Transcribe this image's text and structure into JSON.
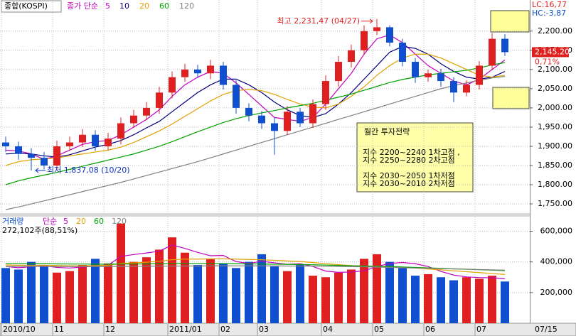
{
  "chart_data": [
    {
      "type": "candlestick",
      "name": "종합(KOSPI)",
      "ma_label": "종가 단순",
      "categories": [
        "2010/10",
        null,
        null,
        null,
        "11",
        null,
        null,
        null,
        "12",
        null,
        null,
        null,
        null,
        "2011/01",
        null,
        null,
        null,
        "02",
        null,
        null,
        "03",
        null,
        null,
        null,
        null,
        "04",
        null,
        null,
        null,
        "05",
        null,
        null,
        null,
        "06",
        null,
        null,
        null,
        "07",
        null,
        null
      ],
      "last_date": "07/15",
      "open": [
        1910,
        1900,
        1880,
        1870,
        1850,
        1900,
        1910,
        1930,
        1900,
        1920,
        1960,
        1980,
        2000,
        2040,
        2080,
        2100,
        2090,
        2110,
        2060,
        2000,
        1980,
        1960,
        1940,
        1990,
        1960,
        2010,
        2070,
        2120,
        2150,
        2200,
        2210,
        2170,
        2120,
        2080,
        2090,
        2070,
        2040,
        2060,
        2110,
        2180
      ],
      "high": [
        1925,
        1912,
        1895,
        1885,
        1915,
        1925,
        1945,
        1942,
        1935,
        1975,
        1995,
        2015,
        2055,
        2095,
        2115,
        2112,
        2125,
        2120,
        2072,
        2012,
        1992,
        1975,
        2005,
        2000,
        2022,
        2085,
        2135,
        2165,
        2215,
        2231.47,
        2215,
        2180,
        2130,
        2100,
        2102,
        2080,
        2072,
        2122,
        2195,
        2192
      ],
      "low": [
        1885,
        1865,
        1837.08,
        1840,
        1838,
        1888,
        1898,
        1888,
        1890,
        1905,
        1948,
        1968,
        1985,
        2025,
        2068,
        2078,
        2075,
        2048,
        1985,
        1965,
        1945,
        1878,
        1930,
        1950,
        1948,
        1995,
        2055,
        2105,
        2138,
        2190,
        2160,
        2108,
        2065,
        2068,
        2055,
        2015,
        2030,
        2048,
        2098,
        2135
      ],
      "close": [
        1900,
        1880,
        1870,
        1850,
        1900,
        1910,
        1930,
        1900,
        1920,
        1960,
        1980,
        2000,
        2040,
        2080,
        2100,
        2090,
        2110,
        2060,
        2000,
        1980,
        1960,
        1940,
        1990,
        1960,
        2010,
        2070,
        2120,
        2150,
        2200,
        2210,
        2170,
        2120,
        2080,
        2090,
        2070,
        2040,
        2060,
        2110,
        2180,
        2145.2
      ],
      "up_color": "#e02020",
      "down_color": "#1050d0",
      "series": [
        {
          "name": "5",
          "color": "#c000c0",
          "values": [
            1890,
            1888,
            1880,
            1866,
            1875,
            1890,
            1905,
            1912,
            1915,
            1930,
            1950,
            1970,
            1995,
            2030,
            2060,
            2080,
            2095,
            2090,
            2065,
            2035,
            2005,
            1975,
            1970,
            1965,
            1975,
            2010,
            2050,
            2090,
            2140,
            2180,
            2190,
            2170,
            2140,
            2110,
            2090,
            2070,
            2060,
            2075,
            2100,
            2125
          ]
        },
        {
          "name": "10",
          "color": "#000080",
          "values": [
            1880,
            1882,
            1880,
            1875,
            1872,
            1878,
            1888,
            1898,
            1905,
            1915,
            1930,
            1948,
            1965,
            1990,
            2015,
            2040,
            2060,
            2075,
            2075,
            2060,
            2040,
            2015,
            1995,
            1980,
            1975,
            1985,
            2010,
            2040,
            2075,
            2110,
            2145,
            2160,
            2155,
            2140,
            2115,
            2095,
            2080,
            2075,
            2080,
            2095
          ]
        },
        {
          "name": "20",
          "color": "#e0a000",
          "values": [
            1850,
            1860,
            1865,
            1867,
            1870,
            1875,
            1880,
            1885,
            1890,
            1898,
            1910,
            1925,
            1940,
            1958,
            1978,
            1998,
            2018,
            2035,
            2045,
            2048,
            2045,
            2035,
            2022,
            2010,
            2002,
            2000,
            2010,
            2030,
            2055,
            2085,
            2110,
            2130,
            2140,
            2140,
            2130,
            2115,
            2100,
            2085,
            2080,
            2085
          ]
        },
        {
          "name": "60",
          "color": "#00a000",
          "values": [
            1800,
            1810,
            1818,
            1825,
            1832,
            1840,
            1848,
            1856,
            1864,
            1872,
            1880,
            1890,
            1900,
            1912,
            1925,
            1938,
            1950,
            1962,
            1972,
            1980,
            1987,
            1993,
            2000,
            2006,
            2012,
            2020,
            2028,
            2036,
            2046,
            2056,
            2066,
            2074,
            2080,
            2086,
            2090,
            2094,
            2098,
            2104,
            2112,
            2118
          ]
        },
        {
          "name": "120",
          "color": "#808080",
          "values": [
            1735,
            1742,
            1750,
            1758,
            1766,
            1774,
            1782,
            1790,
            1798,
            1806,
            1815,
            1824,
            1833,
            1842,
            1851,
            1860,
            1870,
            1880,
            1890,
            1900,
            1910,
            1920,
            1930,
            1940,
            1950,
            1960,
            1970,
            1980,
            1990,
            2000,
            2010,
            2020,
            2030,
            2040,
            2050,
            2058,
            2065,
            2072,
            2078,
            2082
          ]
        }
      ],
      "ylim": [
        1726,
        2281
      ],
      "yticks": [
        {
          "value": 2200,
          "label": "2,200.00"
        },
        {
          "value": 2150,
          "label": "2,150.00"
        },
        {
          "value": 2100,
          "label": "2,100.00"
        },
        {
          "value": 2050,
          "label": "2,050.00"
        },
        {
          "value": 2000,
          "label": "2,000.00"
        },
        {
          "value": 1950,
          "label": "1,950.00"
        },
        {
          "value": 1900,
          "label": "1,900.00"
        },
        {
          "value": 1850,
          "label": "1,850.00"
        },
        {
          "value": 1800,
          "label": "1,800.00"
        },
        {
          "value": 1750,
          "label": "1,750.00"
        }
      ],
      "grid": true,
      "high_label": "최고 2,231,47 (04/27)",
      "low_label": "최저 1,837,08 (10/20)",
      "lc_label": "LC:16,77",
      "hc_label": "HC:-3,87",
      "price_label": "2,145.20",
      "change_label": "0,71%",
      "strategy_title": "월간  투자전략",
      "strategy_lines": [
        "지수  2200~2240  1차고점  ,",
        "지수  2250~2280  2차고점",
        "",
        "지수  2030~2050  1차저점",
        "지수  2030~2010  2차저점"
      ]
    },
    {
      "type": "bar",
      "name": "거래량",
      "ma_label": "단순",
      "volume_label": "272,102주(88,51%)",
      "values": [
        360000,
        350000,
        400000,
        380000,
        330000,
        340000,
        380000,
        420000,
        390000,
        650000,
        400000,
        430000,
        480000,
        560000,
        460000,
        380000,
        420000,
        390000,
        360000,
        400000,
        450000,
        370000,
        340000,
        380000,
        310000,
        300000,
        330000,
        350000,
        420000,
        450000,
        400000,
        360000,
        310000,
        320000,
        300000,
        280000,
        300000,
        290000,
        310000,
        272102
      ],
      "series": [
        {
          "name": "5",
          "color": "#c000c0",
          "values": [
            370000,
            362000,
            368000,
            374000,
            364000,
            360000,
            366000,
            374000,
            378000,
            436000,
            448000,
            458000,
            470000,
            510000,
            488000,
            462000,
            440000,
            442000,
            402000,
            390000,
            404000,
            394000,
            384000,
            388000,
            370000,
            340000,
            332000,
            334000,
            342000,
            370000,
            390000,
            396000,
            388000,
            370000,
            338000,
            314000,
            302000,
            298000,
            296000,
            290000
          ]
        },
        {
          "name": "20",
          "color": "#e0a000",
          "values": [
            380000,
            378000,
            378000,
            378000,
            376000,
            374000,
            374000,
            376000,
            378000,
            390000,
            394000,
            398000,
            404000,
            414000,
            418000,
            418000,
            420000,
            420000,
            418000,
            416000,
            414000,
            410000,
            406000,
            402000,
            396000,
            388000,
            382000,
            376000,
            372000,
            372000,
            370000,
            366000,
            360000,
            354000,
            348000,
            342000,
            336000,
            330000,
            324000,
            318000
          ]
        },
        {
          "name": "60",
          "color": "#00a000",
          "values": [
            390000,
            389000,
            388000,
            388000,
            387000,
            386000,
            386000,
            385000,
            385000,
            386000,
            386000,
            387000,
            388000,
            389000,
            390000,
            390000,
            390000,
            389000,
            388000,
            387000,
            386000,
            385000,
            384000,
            383000,
            381000,
            379000,
            377000,
            375000,
            373000,
            371000,
            369000,
            367000,
            364000,
            361000,
            358000,
            355000,
            352000,
            349000,
            346000,
            343000
          ]
        },
        {
          "name": "120",
          "color": "#808080",
          "values": [
            370000,
            370000,
            370000,
            370000,
            370000,
            370000,
            370000,
            370000,
            370000,
            370000,
            371000,
            371000,
            372000,
            372000,
            373000,
            373000,
            374000,
            374000,
            374000,
            374000,
            374000,
            374000,
            373000,
            373000,
            372000,
            371000,
            370000,
            369000,
            368000,
            366000,
            364000,
            362000,
            360000,
            358000,
            356000,
            354000,
            352000,
            350000,
            348000,
            346000
          ]
        }
      ],
      "ylim": [
        0,
        695000
      ],
      "yticks": [
        {
          "value": 600000,
          "label": "600,000"
        },
        {
          "value": 400000,
          "label": "400,000"
        },
        {
          "value": 200000,
          "label": "200,000"
        }
      ],
      "grid": true
    }
  ]
}
